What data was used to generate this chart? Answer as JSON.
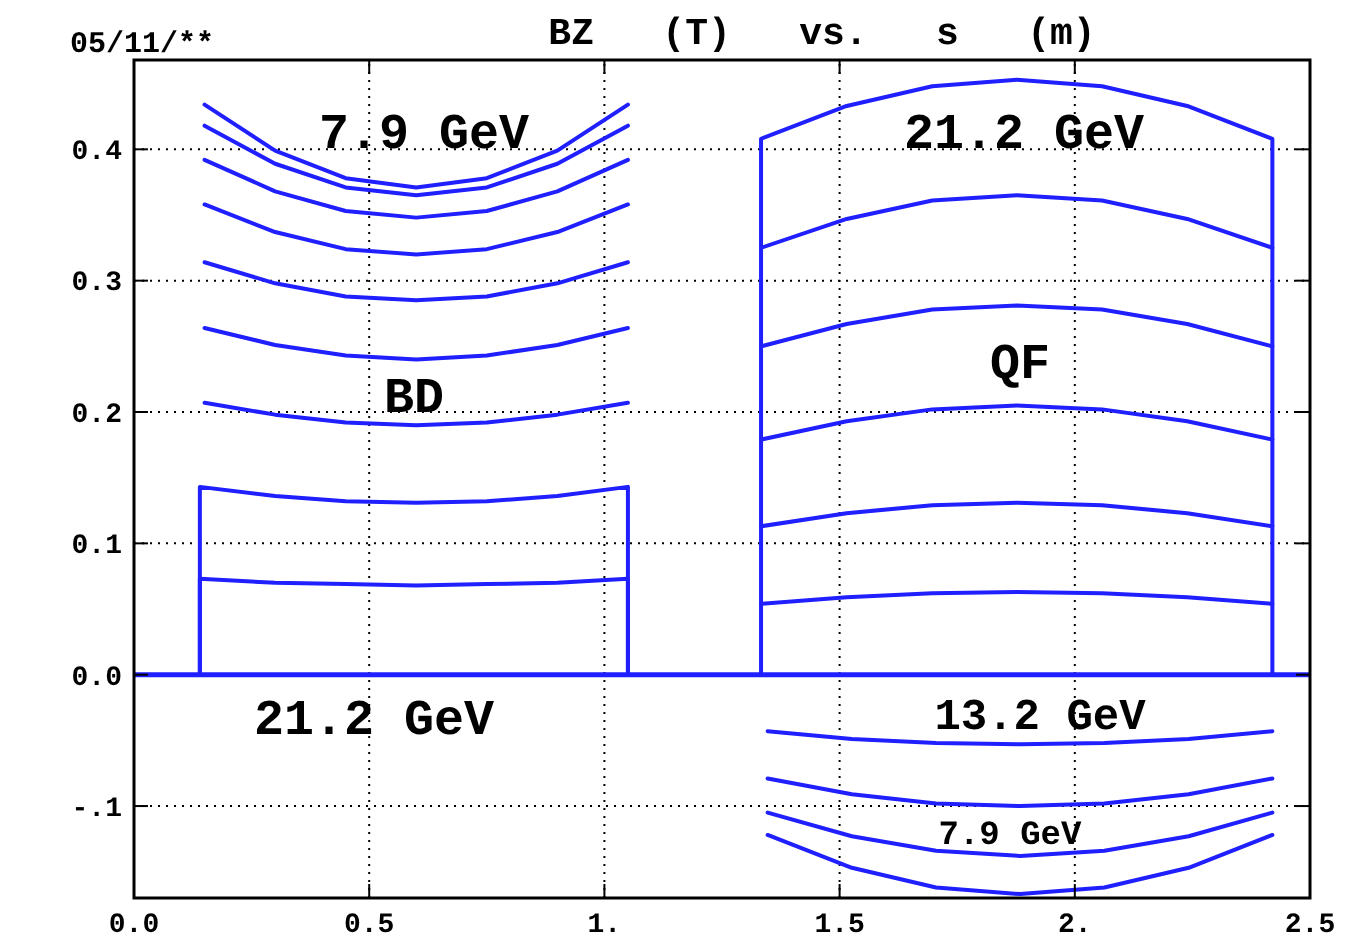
{
  "chart_data": {
    "type": "line",
    "title": "BZ   (T)   vs.   s   (m)",
    "subtitle": "05/11/**",
    "xlim": [
      0,
      2.5
    ],
    "ylim": [
      -0.17,
      0.468
    ],
    "xticks": [
      {
        "value": 0,
        "label": "0.0"
      },
      0.5,
      {
        "value": 1,
        "label": "1."
      },
      1.5,
      {
        "value": 2,
        "label": "2."
      },
      2.5
    ],
    "yticks": [
      {
        "value": -0.1,
        "label": "-.1"
      },
      {
        "value": 0,
        "label": "0.0"
      },
      0.1,
      0.2,
      0.3,
      0.4
    ],
    "grid": true,
    "marker": "none",
    "line_style": "solid",
    "ref_lines": [
      {
        "axis": "y",
        "value": 0,
        "color": "#1f1fff"
      }
    ],
    "annotations": [
      "7.9 GeV",
      "BD",
      "21.2 GeV",
      "21.2 GeV",
      "QF",
      "13.2 GeV",
      "7.9 GeV"
    ],
    "series": [
      {
        "color": "#1f1fff",
        "x": [
          0.15,
          0.3,
          0.45,
          0.6,
          0.75,
          0.9,
          1.05
        ],
        "values": [
          0.434,
          0.399,
          0.378,
          0.371,
          0.378,
          0.399,
          0.434
        ]
      },
      {
        "color": "#1f1fff",
        "x": [
          0.15,
          0.3,
          0.45,
          0.6,
          0.75,
          0.9,
          1.05
        ],
        "values": [
          0.418,
          0.389,
          0.371,
          0.365,
          0.371,
          0.389,
          0.418
        ]
      },
      {
        "color": "#1f1fff",
        "x": [
          0.15,
          0.3,
          0.45,
          0.6,
          0.75,
          0.9,
          1.05
        ],
        "values": [
          0.392,
          0.368,
          0.353,
          0.348,
          0.353,
          0.368,
          0.392
        ]
      },
      {
        "color": "#1f1fff",
        "x": [
          0.15,
          0.3,
          0.45,
          0.6,
          0.75,
          0.9,
          1.05
        ],
        "values": [
          0.358,
          0.337,
          0.324,
          0.32,
          0.324,
          0.337,
          0.358
        ]
      },
      {
        "color": "#1f1fff",
        "x": [
          0.15,
          0.3,
          0.45,
          0.6,
          0.75,
          0.9,
          1.05
        ],
        "values": [
          0.314,
          0.298,
          0.288,
          0.285,
          0.288,
          0.298,
          0.314
        ]
      },
      {
        "color": "#1f1fff",
        "x": [
          0.15,
          0.3,
          0.45,
          0.6,
          0.75,
          0.9,
          1.05
        ],
        "values": [
          0.264,
          0.251,
          0.243,
          0.24,
          0.243,
          0.251,
          0.264
        ]
      },
      {
        "color": "#1f1fff",
        "x": [
          0.15,
          0.3,
          0.45,
          0.6,
          0.75,
          0.9,
          1.05
        ],
        "values": [
          0.207,
          0.198,
          0.192,
          0.19,
          0.192,
          0.198,
          0.207
        ]
      },
      {
        "color": "#1f1fff",
        "x": [
          0.14,
          0.14,
          0.3,
          0.45,
          0.6,
          0.75,
          0.9,
          1.05,
          1.05
        ],
        "values": [
          0,
          0.143,
          0.136,
          0.132,
          0.131,
          0.132,
          0.136,
          0.143,
          0
        ]
      },
      {
        "color": "#1f1fff",
        "x": [
          0.14,
          0.14,
          0.3,
          0.45,
          0.6,
          0.75,
          0.9,
          1.05,
          1.05
        ],
        "values": [
          0,
          0.073,
          0.07,
          0.069,
          0.068,
          0.069,
          0.07,
          0.073,
          0
        ]
      },
      {
        "color": "#1f1fff",
        "x": [
          1.333,
          1.333,
          1.515,
          1.697,
          1.877,
          2.058,
          2.239,
          2.42,
          2.42
        ],
        "values": [
          0,
          0.408,
          0.433,
          0.448,
          0.453,
          0.448,
          0.433,
          0.408,
          0
        ]
      },
      {
        "color": "#1f1fff",
        "x": [
          1.333,
          1.515,
          1.697,
          1.877,
          2.058,
          2.239,
          2.42
        ],
        "values": [
          0.325,
          0.347,
          0.361,
          0.365,
          0.361,
          0.347,
          0.325
        ]
      },
      {
        "color": "#1f1fff",
        "x": [
          1.333,
          1.515,
          1.697,
          1.877,
          2.058,
          2.239,
          2.42
        ],
        "values": [
          0.25,
          0.267,
          0.278,
          0.281,
          0.278,
          0.267,
          0.25
        ]
      },
      {
        "color": "#1f1fff",
        "x": [
          1.333,
          1.515,
          1.697,
          1.877,
          2.058,
          2.239,
          2.42
        ],
        "values": [
          0.179,
          0.193,
          0.202,
          0.205,
          0.202,
          0.193,
          0.179
        ]
      },
      {
        "color": "#1f1fff",
        "x": [
          1.333,
          1.515,
          1.697,
          1.877,
          2.058,
          2.239,
          2.42
        ],
        "values": [
          0.113,
          0.123,
          0.129,
          0.131,
          0.129,
          0.123,
          0.113
        ]
      },
      {
        "color": "#1f1fff",
        "x": [
          1.333,
          1.515,
          1.697,
          1.877,
          2.058,
          2.239,
          2.42
        ],
        "values": [
          0.054,
          0.059,
          0.062,
          0.063,
          0.062,
          0.059,
          0.054
        ]
      },
      {
        "color": "#1f1fff",
        "x": [
          1.347,
          1.526,
          1.705,
          1.884,
          2.063,
          2.242,
          2.42
        ],
        "values": [
          -0.043,
          -0.049,
          -0.052,
          -0.053,
          -0.052,
          -0.049,
          -0.043
        ]
      },
      {
        "color": "#1f1fff",
        "x": [
          1.347,
          1.526,
          1.705,
          1.884,
          2.063,
          2.242,
          2.42
        ],
        "values": [
          -0.079,
          -0.091,
          -0.098,
          -0.1,
          -0.098,
          -0.091,
          -0.079
        ]
      },
      {
        "color": "#1f1fff",
        "x": [
          1.347,
          1.526,
          1.705,
          1.884,
          2.063,
          2.242,
          2.42
        ],
        "values": [
          -0.105,
          -0.123,
          -0.134,
          -0.138,
          -0.134,
          -0.123,
          -0.105
        ]
      },
      {
        "color": "#1f1fff",
        "x": [
          1.347,
          1.526,
          1.705,
          1.884,
          2.063,
          2.242,
          2.42
        ],
        "values": [
          -0.122,
          -0.147,
          -0.162,
          -0.167,
          -0.162,
          -0.147,
          -0.122
        ]
      }
    ]
  }
}
